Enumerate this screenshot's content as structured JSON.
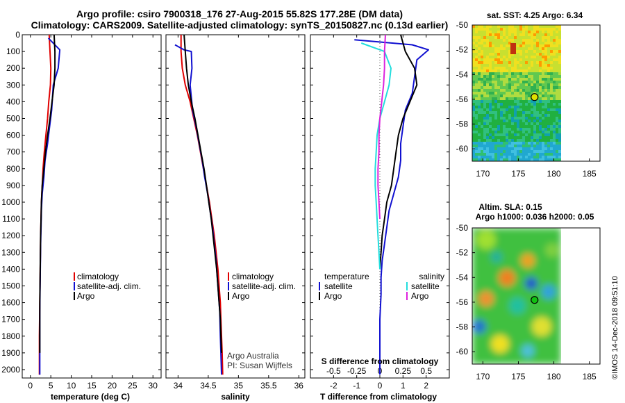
{
  "header": {
    "title_line1": "Argo profile: csiro 7900318_176 27-Aug-2015 55.82S 177.28E (DM data)",
    "title_line2": "Climatology: CARS2009. Satellite-adjusted climatology: synTS_20150827.nc (0.13d earlier)"
  },
  "colors": {
    "climatology": "#e00000",
    "satellite_adj": "#1010d0",
    "argo": "#000000",
    "satellite_s": "#22dddd",
    "argo_s": "#dd22dd"
  },
  "credit": "Argo Australia\nPI: Susan Wijffels",
  "watermark": "©IMOS 14-Dec-2018 09:51:10",
  "chart_data": [
    {
      "type": "line",
      "panel": "temperature",
      "xlabel": "temperature (deg C)",
      "xlim": [
        -2,
        32
      ],
      "ylim": [
        0,
        2050
      ],
      "y_inverted": true,
      "xticks": [
        0,
        5,
        10,
        15,
        20,
        25,
        30
      ],
      "yticks": [
        0,
        100,
        200,
        300,
        400,
        500,
        600,
        700,
        800,
        900,
        1000,
        1100,
        1200,
        1300,
        1400,
        1500,
        1600,
        1700,
        1800,
        1900,
        2000
      ],
      "legend": [
        "climatology",
        "satellite-adj. clim.",
        "Argo"
      ],
      "legend_position": "right-middle",
      "series": [
        {
          "name": "climatology",
          "color": "#e00000",
          "x": [
            4.6,
            4.8,
            5.0,
            4.9,
            4.5,
            4.2,
            3.8,
            3.4,
            3.1,
            2.9,
            2.7,
            2.6,
            2.5,
            2.45,
            2.4,
            2.35,
            2.3,
            2.25,
            2.2,
            2.2,
            2.2
          ],
          "y": [
            0,
            100,
            200,
            300,
            400,
            500,
            600,
            700,
            800,
            900,
            1000,
            1100,
            1200,
            1300,
            1400,
            1500,
            1600,
            1700,
            1800,
            1900,
            2030
          ]
        },
        {
          "name": "satellite-adj. clim.",
          "color": "#1010d0",
          "x": [
            4.4,
            6.4,
            7.2,
            6.8,
            5.6,
            5.2,
            4.7,
            4.2,
            3.6,
            3.3,
            2.9,
            2.7,
            2.6,
            2.5,
            2.45,
            2.4,
            2.35,
            2.3,
            2.3,
            2.3,
            2.3
          ],
          "y": [
            20,
            70,
            90,
            200,
            300,
            450,
            550,
            650,
            750,
            850,
            950,
            1050,
            1150,
            1250,
            1350,
            1450,
            1550,
            1650,
            1800,
            1900,
            2030
          ]
        },
        {
          "name": "Argo",
          "color": "#000000",
          "x": [
            5.8,
            6.0,
            6.0,
            5.8,
            5.3,
            4.8,
            4.2,
            3.7,
            3.3,
            2.9,
            2.7,
            2.6,
            2.5,
            2.45,
            2.4,
            2.35,
            2.3,
            2.3,
            2.3,
            2.3
          ],
          "y": [
            0,
            100,
            200,
            300,
            400,
            500,
            600,
            700,
            800,
            900,
            1000,
            1100,
            1200,
            1300,
            1400,
            1500,
            1600,
            1700,
            1800,
            1900
          ]
        }
      ]
    },
    {
      "type": "line",
      "panel": "salinity",
      "xlabel": "salinity",
      "xlim": [
        33.8,
        36.1
      ],
      "ylim": [
        0,
        2050
      ],
      "y_inverted": true,
      "xticks": [
        34,
        34.5,
        35,
        35.5,
        36
      ],
      "xtick_labels": [
        "34",
        "34.5",
        "35",
        "35.5",
        "36"
      ],
      "legend": [
        "climatology",
        "satellite-adj. clim.",
        "Argo"
      ],
      "legend_position": "right-middle",
      "series": [
        {
          "name": "climatology",
          "color": "#e00000",
          "x": [
            34.05,
            34.05,
            34.07,
            34.12,
            34.2,
            34.26,
            34.32,
            34.37,
            34.42,
            34.47,
            34.52,
            34.56,
            34.6,
            34.63,
            34.66,
            34.68,
            34.7,
            34.71,
            34.72,
            34.73,
            34.74
          ],
          "y": [
            0,
            100,
            200,
            300,
            400,
            500,
            600,
            700,
            800,
            900,
            1000,
            1100,
            1200,
            1300,
            1400,
            1500,
            1600,
            1700,
            1800,
            1900,
            2030
          ]
        },
        {
          "name": "satellite-adj. clim.",
          "color": "#1010d0",
          "x": [
            33.95,
            34.1,
            34.22,
            34.23,
            34.2,
            34.24,
            34.3,
            34.35,
            34.4,
            34.44,
            34.49,
            34.53,
            34.57,
            34.6,
            34.63,
            34.65,
            34.67,
            34.69,
            34.7,
            34.71,
            34.72
          ],
          "y": [
            60,
            90,
            100,
            200,
            300,
            450,
            550,
            650,
            750,
            850,
            950,
            1050,
            1150,
            1250,
            1350,
            1450,
            1550,
            1650,
            1800,
            1900,
            2030
          ]
        },
        {
          "name": "Argo",
          "color": "#000000",
          "x": [
            34.1,
            34.12,
            34.14,
            34.17,
            34.22,
            34.28,
            34.33,
            34.38,
            34.43,
            34.47,
            34.51,
            34.55,
            34.58,
            34.61,
            34.64,
            34.66,
            34.68,
            34.7,
            34.71,
            34.72
          ],
          "y": [
            0,
            100,
            200,
            300,
            400,
            500,
            600,
            700,
            800,
            900,
            1000,
            1100,
            1200,
            1300,
            1400,
            1500,
            1600,
            1700,
            1800,
            1900
          ]
        }
      ]
    },
    {
      "type": "line",
      "panel": "difference",
      "xlabel": "T difference from climatology",
      "xlabel_top": "S difference from climatology",
      "xlim": [
        -3,
        3
      ],
      "ylim": [
        0,
        2050
      ],
      "y_inverted": true,
      "xticks": [
        -2,
        -1,
        0,
        1,
        2
      ],
      "xticks_s": [
        -0.5,
        -0.25,
        0,
        0.25,
        0.5
      ],
      "xticks_s_labels": [
        "-0.5",
        "-0.25",
        "0",
        "0.25",
        "0.5"
      ],
      "legend_left_title": "temperature",
      "legend_right_title": "salinity",
      "legend_left": [
        "satellite",
        "Argo"
      ],
      "legend_right": [
        "satellite",
        "Argo"
      ],
      "series": [
        {
          "name": "temperature satellite",
          "color": "#1010d0",
          "x": [
            -1.1,
            1.4,
            2.1,
            1.6,
            1.5,
            1.4,
            1.1,
            1.0,
            0.9,
            0.9,
            0.8,
            0.6,
            0.4,
            0.3,
            0.2,
            0.1,
            0.05,
            0.05,
            0.0,
            0.0,
            0.0
          ],
          "y": [
            30,
            60,
            90,
            150,
            250,
            350,
            450,
            550,
            650,
            750,
            850,
            950,
            1050,
            1150,
            1250,
            1350,
            1450,
            1550,
            1700,
            1850,
            2030
          ]
        },
        {
          "name": "temperature Argo",
          "color": "#000000",
          "x": [
            0.9,
            1.1,
            1.5,
            1.6,
            1.3,
            1.0,
            0.8,
            0.7,
            0.6,
            0.5,
            0.3,
            0.2,
            0.1,
            0.05,
            0.0
          ],
          "y": [
            0,
            100,
            200,
            300,
            400,
            500,
            600,
            700,
            800,
            900,
            1000,
            1100,
            1200,
            1300,
            1400
          ]
        },
        {
          "name": "salinity satellite",
          "color": "#22dddd",
          "x": [
            -0.2,
            0.05,
            0.12,
            0.1,
            0.05,
            0.0,
            -0.03,
            -0.04,
            -0.05,
            -0.05,
            -0.04,
            -0.03,
            -0.02,
            -0.01,
            0.0
          ],
          "y": [
            50,
            100,
            200,
            300,
            400,
            500,
            600,
            700,
            800,
            900,
            1000,
            1100,
            1200,
            1300,
            1400
          ]
        },
        {
          "name": "salinity Argo",
          "color": "#dd22dd",
          "x": [
            0.06,
            0.05,
            0.05,
            0.04,
            0.02,
            0.0,
            -0.01,
            -0.01,
            -0.02,
            -0.02,
            -0.01,
            0.0
          ],
          "y": [
            0,
            100,
            200,
            300,
            400,
            500,
            600,
            700,
            800,
            900,
            1000,
            1100
          ]
        }
      ]
    },
    {
      "type": "heatmap",
      "panel": "sst-map",
      "title": "sat. SST: 4.25 Argo: 6.34",
      "xlim": [
        168.5,
        186.5
      ],
      "ylim": [
        -61,
        -50
      ],
      "xticks": [
        170,
        175,
        180,
        185
      ],
      "yticks": [
        -50,
        -52,
        -54,
        -56,
        -58,
        -60
      ],
      "marker": {
        "lon": 177.28,
        "lat": -55.82
      }
    },
    {
      "type": "heatmap",
      "panel": "sla-map",
      "title": "Altim. SLA: 0.15",
      "subtitle": "Argo h1000: 0.036 h2000: 0.05",
      "xlim": [
        168.5,
        186.5
      ],
      "ylim": [
        -61,
        -50
      ],
      "xticks": [
        170,
        175,
        180,
        185
      ],
      "yticks": [
        -50,
        -52,
        -54,
        -56,
        -58,
        -60
      ],
      "marker": {
        "lon": 177.28,
        "lat": -55.82
      }
    }
  ]
}
